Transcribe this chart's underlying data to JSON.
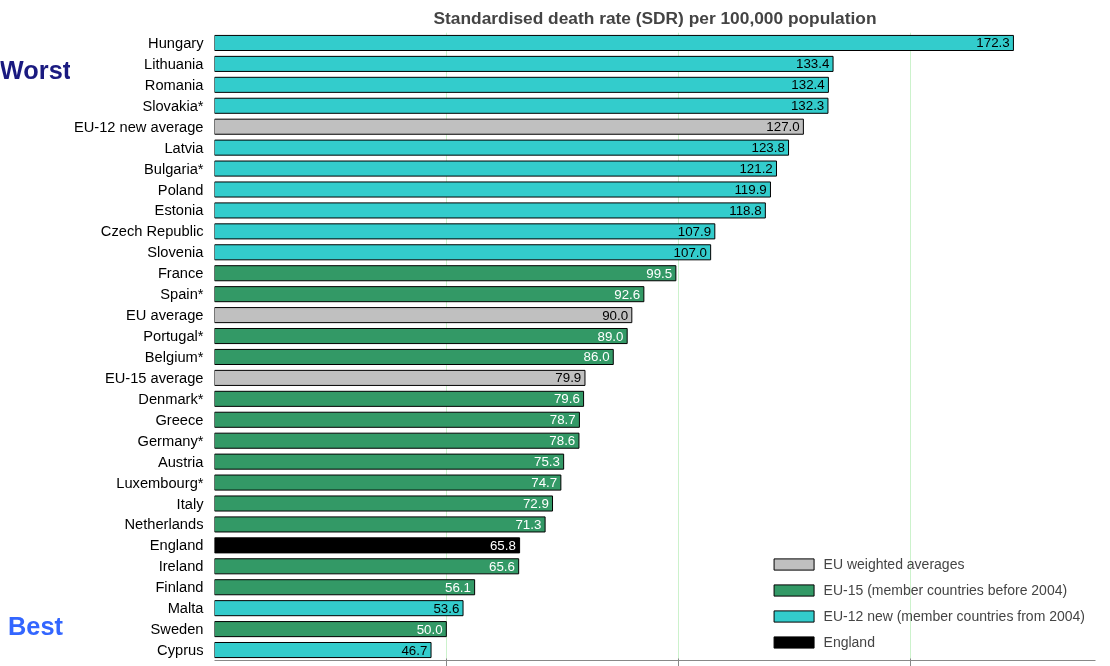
{
  "chart_data": {
    "type": "bar",
    "orientation": "horizontal",
    "title": "Standardised death rate (SDR) per 100,000 population",
    "categories": [
      "Hungary",
      "Lithuania",
      "Romania",
      "Slovakia*",
      "EU-12 new average",
      "Latvia",
      "Bulgaria*",
      "Poland",
      "Estonia",
      "Czech Republic",
      "Slovenia",
      "France",
      "Spain*",
      "EU average",
      "Portugal*",
      "Belgium*",
      "EU-15 average",
      "Denmark*",
      "Greece",
      "Germany*",
      "Austria",
      "Luxembourg*",
      "Italy",
      "Netherlands",
      "England",
      "Ireland",
      "Finland",
      "Malta",
      "Sweden",
      "Cyprus"
    ],
    "series": [
      {
        "name": "EU weighted averages",
        "color": "#c0c0c0",
        "values": [
          null,
          null,
          null,
          null,
          127.0,
          null,
          null,
          null,
          null,
          null,
          null,
          null,
          null,
          90.0,
          null,
          null,
          79.9,
          null,
          null,
          null,
          null,
          null,
          null,
          null,
          null,
          null,
          null,
          null,
          null,
          null
        ],
        "value_labels": [
          null,
          null,
          null,
          null,
          "127.0",
          null,
          null,
          null,
          null,
          null,
          null,
          null,
          null,
          "90.0",
          null,
          null,
          "79.9",
          null,
          null,
          null,
          null,
          null,
          null,
          null,
          null,
          null,
          null,
          null,
          null,
          null
        ]
      },
      {
        "name": "EU-15 (member countries before 2004)",
        "color": "#339966",
        "values": [
          null,
          null,
          null,
          null,
          null,
          null,
          null,
          null,
          null,
          null,
          null,
          99.5,
          92.6,
          null,
          89.0,
          86.0,
          null,
          79.6,
          78.7,
          78.6,
          75.3,
          74.7,
          72.9,
          71.3,
          null,
          65.6,
          56.1,
          null,
          50.0,
          null
        ],
        "value_labels": [
          null,
          null,
          null,
          null,
          null,
          null,
          null,
          null,
          null,
          null,
          null,
          "99.5",
          "92.6",
          null,
          "89.0",
          "86.0",
          null,
          "79.6",
          "78.7",
          "78.6",
          "75.3",
          "74.7",
          "72.9",
          "71.3",
          null,
          "65.6",
          "56.1",
          null,
          "50.0",
          null
        ]
      },
      {
        "name": "EU-12 new (member countries from 2004)",
        "color": "#33cccc",
        "values": [
          172.3,
          133.4,
          132.4,
          132.3,
          null,
          123.8,
          121.2,
          119.9,
          118.8,
          107.9,
          107.0,
          null,
          null,
          null,
          null,
          null,
          null,
          null,
          null,
          null,
          null,
          null,
          null,
          null,
          null,
          null,
          null,
          53.6,
          null,
          46.7
        ],
        "value_labels": [
          "172.3",
          "133.4",
          "132.4",
          "132.3",
          null,
          "123.8",
          "121.2",
          "119.9",
          "118.8",
          "107.9",
          "107.0",
          null,
          null,
          null,
          null,
          null,
          null,
          null,
          null,
          null,
          null,
          null,
          null,
          null,
          null,
          null,
          null,
          "53.6",
          null,
          "46.7"
        ]
      },
      {
        "name": "England",
        "color": "#000000",
        "values": [
          null,
          null,
          null,
          null,
          null,
          null,
          null,
          null,
          null,
          null,
          null,
          null,
          null,
          null,
          null,
          null,
          null,
          null,
          null,
          null,
          null,
          null,
          null,
          null,
          65.8,
          null,
          null,
          null,
          null,
          null
        ],
        "value_labels": [
          null,
          null,
          null,
          null,
          null,
          null,
          null,
          null,
          null,
          null,
          null,
          null,
          null,
          null,
          null,
          null,
          null,
          null,
          null,
          null,
          null,
          null,
          null,
          null,
          "65.8",
          null,
          null,
          null,
          null,
          null
        ]
      }
    ],
    "xlim": [
      0,
      190
    ],
    "xticks": [
      {
        "value": 50,
        "label": null
      },
      {
        "value": 100,
        "label": null
      },
      {
        "value": 150,
        "label": null
      }
    ],
    "tick_labels": "y",
    "grid": "x",
    "legend": "bottom right",
    "annotations": [
      "Worst",
      "Best"
    ]
  }
}
